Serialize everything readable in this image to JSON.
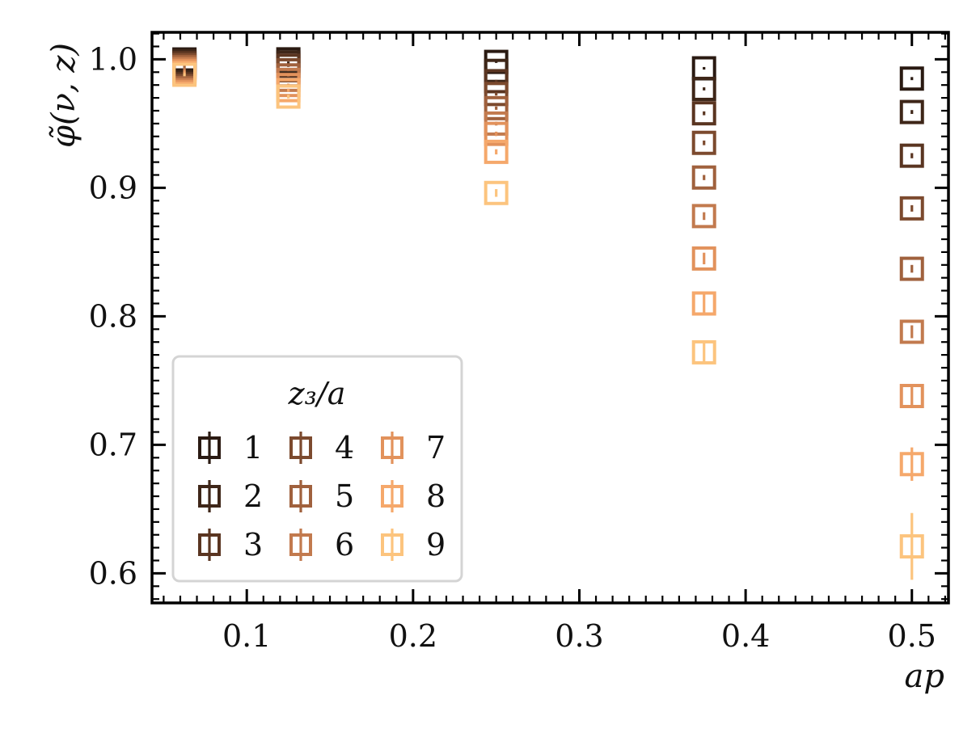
{
  "chart_data": {
    "type": "scatter",
    "title": "",
    "xlabel": "ap",
    "ylabel": "φ̃(ν, z)",
    "xlim": [
      0.043,
      0.522
    ],
    "ylim": [
      0.577,
      1.021
    ],
    "x_ticks": [
      0.1,
      0.2,
      0.3,
      0.4,
      0.5
    ],
    "x_tick_labels": [
      "0.1",
      "0.2",
      "0.3",
      "0.4",
      "0.5"
    ],
    "y_ticks": [
      0.6,
      0.7,
      0.8,
      0.9,
      1.0
    ],
    "y_tick_labels": [
      "0.6",
      "0.7",
      "0.8",
      "0.9",
      "1.0"
    ],
    "grid": false,
    "marker": "open-square",
    "legend": {
      "title": "z₃/a",
      "placement": "lower-left",
      "columns": 3
    },
    "series": [
      {
        "name": "1",
        "color": "#2a1a12",
        "points": [
          {
            "x": 0.0625,
            "y": 0.9999,
            "err": 0.0008
          },
          {
            "x": 0.125,
            "y": 1.0,
            "err": 0.0007
          },
          {
            "x": 0.25,
            "y": 0.998,
            "err": 0.0008
          },
          {
            "x": 0.375,
            "y": 0.993,
            "err": 0.001
          },
          {
            "x": 0.5,
            "y": 0.985,
            "err": 0.0012
          }
        ]
      },
      {
        "name": "2",
        "color": "#3e2618",
        "points": [
          {
            "x": 0.0625,
            "y": 0.9985,
            "err": 0.0008
          },
          {
            "x": 0.125,
            "y": 0.9975,
            "err": 0.0008
          },
          {
            "x": 0.25,
            "y": 0.991,
            "err": 0.0009
          },
          {
            "x": 0.375,
            "y": 0.977,
            "err": 0.0012
          },
          {
            "x": 0.5,
            "y": 0.959,
            "err": 0.0015
          }
        ]
      },
      {
        "name": "3",
        "color": "#5a3521",
        "points": [
          {
            "x": 0.0625,
            "y": 0.997,
            "err": 0.0009
          },
          {
            "x": 0.125,
            "y": 0.995,
            "err": 0.0009
          },
          {
            "x": 0.25,
            "y": 0.983,
            "err": 0.001
          },
          {
            "x": 0.375,
            "y": 0.958,
            "err": 0.0015
          },
          {
            "x": 0.5,
            "y": 0.925,
            "err": 0.002
          }
        ]
      },
      {
        "name": "4",
        "color": "#7c4a2e",
        "points": [
          {
            "x": 0.0625,
            "y": 0.9955,
            "err": 0.0009
          },
          {
            "x": 0.125,
            "y": 0.9915,
            "err": 0.0009
          },
          {
            "x": 0.25,
            "y": 0.973,
            "err": 0.0012
          },
          {
            "x": 0.375,
            "y": 0.935,
            "err": 0.0018
          },
          {
            "x": 0.5,
            "y": 0.884,
            "err": 0.0025
          }
        ]
      },
      {
        "name": "5",
        "color": "#a0613d",
        "points": [
          {
            "x": 0.0625,
            "y": 0.994,
            "err": 0.0009
          },
          {
            "x": 0.125,
            "y": 0.9875,
            "err": 0.001
          },
          {
            "x": 0.25,
            "y": 0.962,
            "err": 0.0013
          },
          {
            "x": 0.375,
            "y": 0.908,
            "err": 0.002
          },
          {
            "x": 0.5,
            "y": 0.837,
            "err": 0.003
          }
        ]
      },
      {
        "name": "6",
        "color": "#c27a4e",
        "points": [
          {
            "x": 0.0625,
            "y": 0.9925,
            "err": 0.001
          },
          {
            "x": 0.125,
            "y": 0.984,
            "err": 0.001
          },
          {
            "x": 0.25,
            "y": 0.95,
            "err": 0.0015
          },
          {
            "x": 0.375,
            "y": 0.878,
            "err": 0.003
          },
          {
            "x": 0.5,
            "y": 0.788,
            "err": 0.005
          }
        ]
      },
      {
        "name": "7",
        "color": "#e2925c",
        "points": [
          {
            "x": 0.0625,
            "y": 0.991,
            "err": 0.001
          },
          {
            "x": 0.125,
            "y": 0.98,
            "err": 0.0011
          },
          {
            "x": 0.25,
            "y": 0.942,
            "err": 0.0017
          },
          {
            "x": 0.375,
            "y": 0.845,
            "err": 0.0045
          },
          {
            "x": 0.5,
            "y": 0.738,
            "err": 0.008
          }
        ]
      },
      {
        "name": "8",
        "color": "#f5a86b",
        "points": [
          {
            "x": 0.0625,
            "y": 0.9895,
            "err": 0.0011
          },
          {
            "x": 0.125,
            "y": 0.976,
            "err": 0.0012
          },
          {
            "x": 0.25,
            "y": 0.928,
            "err": 0.002
          },
          {
            "x": 0.375,
            "y": 0.81,
            "err": 0.007
          },
          {
            "x": 0.5,
            "y": 0.685,
            "err": 0.013
          }
        ]
      },
      {
        "name": "9",
        "color": "#fcc47e",
        "points": [
          {
            "x": 0.0625,
            "y": 0.988,
            "err": 0.0012
          },
          {
            "x": 0.125,
            "y": 0.971,
            "err": 0.0014
          },
          {
            "x": 0.25,
            "y": 0.896,
            "err": 0.003
          },
          {
            "x": 0.375,
            "y": 0.772,
            "err": 0.009
          },
          {
            "x": 0.5,
            "y": 0.621,
            "err": 0.026
          }
        ]
      }
    ]
  }
}
